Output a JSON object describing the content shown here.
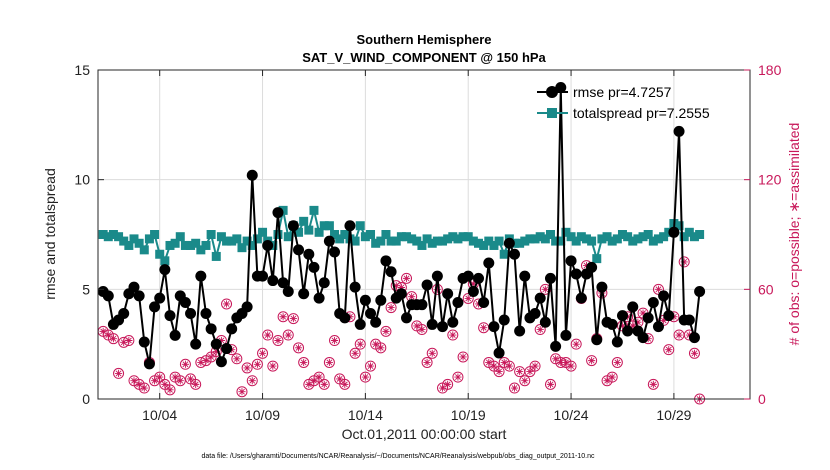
{
  "chart_data": {
    "type": "line",
    "title": "Southern Hemisphere",
    "subtitle": "SAT_V_WIND_COMPONENT @ 150 hPa",
    "xlabel": "Oct.01,2011 00:00:00 start",
    "ylabel": "rmse and totalspread",
    "ylabel_right": "# of obs: o=possible; ∗=assimilated",
    "xlim": [
      1,
      32.7
    ],
    "ylim": [
      0,
      15
    ],
    "ylim_right": [
      0,
      180
    ],
    "x_ticks": [
      4,
      9,
      14,
      19,
      24,
      29
    ],
    "x_tick_labels": [
      "10/04",
      "10/09",
      "10/14",
      "10/19",
      "10/24",
      "10/29"
    ],
    "y_ticks": [
      0,
      5,
      10,
      15
    ],
    "y_ticks_right": [
      0,
      60,
      120,
      180
    ],
    "legend_position": "top-right",
    "footnote": "data file: /Users/gharamti/Documents/NCAR/Reanalysis/~/Documents/NCAR/Reanalysis/webpub/obs_diag_output_2011-10.nc",
    "colors": {
      "rmse": "#000000",
      "spread": "#1a8a8a",
      "obs": "#c8185a"
    },
    "series": [
      {
        "name": "rmse pr=4.7257",
        "x_start": 1.25,
        "x_step": 0.25,
        "values": [
          4.9,
          4.7,
          3.4,
          3.6,
          3.9,
          4.8,
          5.1,
          4.7,
          2.6,
          1.6,
          4.2,
          4.6,
          5.9,
          3.8,
          2.9,
          4.7,
          4.4,
          3.9,
          2.5,
          5.6,
          3.9,
          3.2,
          2.5,
          1.7,
          2.3,
          3.2,
          3.7,
          3.9,
          4.2,
          10.2,
          5.6,
          5.6,
          7,
          5.4,
          8.5,
          5.3,
          4.9,
          7.9,
          6.8,
          4.8,
          6.6,
          6,
          4.6,
          5.3,
          7.2,
          6.7,
          3.9,
          3.7,
          7.9,
          5.1,
          3.4,
          4.5,
          3.9,
          3.5,
          4.5,
          6.3,
          5.8,
          4.6,
          4.8,
          3.7,
          4.3,
          4.3,
          4.3,
          5.2,
          3.4,
          5.6,
          3.3,
          4.8,
          3.5,
          4.4,
          5.5,
          5.6,
          4.9,
          5.5,
          4.4,
          6.2,
          3.3,
          2.1,
          3.6,
          7.1,
          6.6,
          3.1,
          5.6,
          3.7,
          3.9,
          4.6,
          3.5,
          5.5,
          2.4,
          14.2,
          2.9,
          6.3,
          5.7,
          4.6,
          5.7,
          6,
          2.7,
          5.1,
          3.5,
          3.4,
          2.6,
          3.8,
          3.1,
          4.2,
          3.1,
          2.8,
          3.7,
          4.4,
          3.3,
          4.7,
          3.8,
          7.6,
          12.2,
          3.6,
          3.6,
          2.8,
          4.9
        ]
      },
      {
        "name": "totalspread pr=7.2555",
        "x_start": 1.25,
        "x_step": 0.25,
        "values": [
          7.5,
          7.4,
          7.5,
          7.4,
          7.2,
          7,
          7.3,
          7.1,
          6.8,
          7.3,
          7.5,
          6.6,
          6.3,
          7,
          7.1,
          7.4,
          7,
          7,
          7.1,
          6.8,
          7,
          7.5,
          6.5,
          7.4,
          7.2,
          7.2,
          7.3,
          6.9,
          7.2,
          7,
          7.3,
          7.6,
          7.2,
          7,
          7.5,
          8.6,
          7.4,
          7.9,
          7.6,
          8.1,
          7.7,
          8.6,
          7.6,
          7.9,
          7.9,
          7.5,
          7.3,
          7.5,
          7.3,
          7.2,
          7.9,
          7.4,
          7.5,
          7.1,
          7.2,
          7.5,
          7.2,
          7.2,
          7.4,
          7.4,
          7.3,
          7.2,
          7,
          7.3,
          7.1,
          7.2,
          7.2,
          7.3,
          7.4,
          7.3,
          7.4,
          7.4,
          7.2,
          7.1,
          7.0,
          7.2,
          7.0,
          7.2,
          6.6,
          7.3,
          7.1,
          7.1,
          7.2,
          7.3,
          7.3,
          7.4,
          7.3,
          7.5,
          7.2,
          7.2,
          7.6,
          7.4,
          7.2,
          7.4,
          7.3,
          7.2,
          6.4,
          7.3,
          7.4,
          7.2,
          7.3,
          7.5,
          7.4,
          7.2,
          7.3,
          7.4,
          7.5,
          7.2,
          7.3,
          7.4,
          7.6,
          8.0,
          7.9,
          7.4,
          7.6,
          7.4,
          7.5
        ]
      },
      {
        "name": "# of obs possible",
        "axis": "right",
        "x_start": 1.25,
        "x_step": 0.25,
        "values": [
          37,
          35,
          33,
          14,
          31,
          32,
          10,
          8,
          6,
          20,
          10,
          12,
          8,
          5,
          12,
          10,
          19,
          11,
          8,
          20,
          21,
          23,
          26,
          32,
          52,
          27,
          22,
          4,
          17,
          10,
          19,
          25,
          35,
          18,
          32,
          45,
          35,
          44,
          28,
          20,
          8,
          10,
          12,
          8,
          20,
          32,
          11,
          8,
          45,
          25,
          30,
          12,
          18,
          30,
          28,
          37,
          50,
          62,
          61,
          66,
          56,
          40,
          38,
          20,
          25,
          60,
          6,
          8,
          35,
          12,
          23,
          55,
          63,
          52,
          39,
          20,
          18,
          15,
          20,
          18,
          6,
          15,
          10,
          15,
          18,
          38,
          60,
          8,
          22,
          20,
          20,
          18,
          30,
          55,
          73,
          21,
          33,
          58,
          10,
          12,
          20,
          40,
          45,
          40,
          42,
          47,
          33,
          8,
          60,
          43,
          27,
          45,
          35,
          75,
          35,
          25,
          0
        ]
      }
    ]
  }
}
